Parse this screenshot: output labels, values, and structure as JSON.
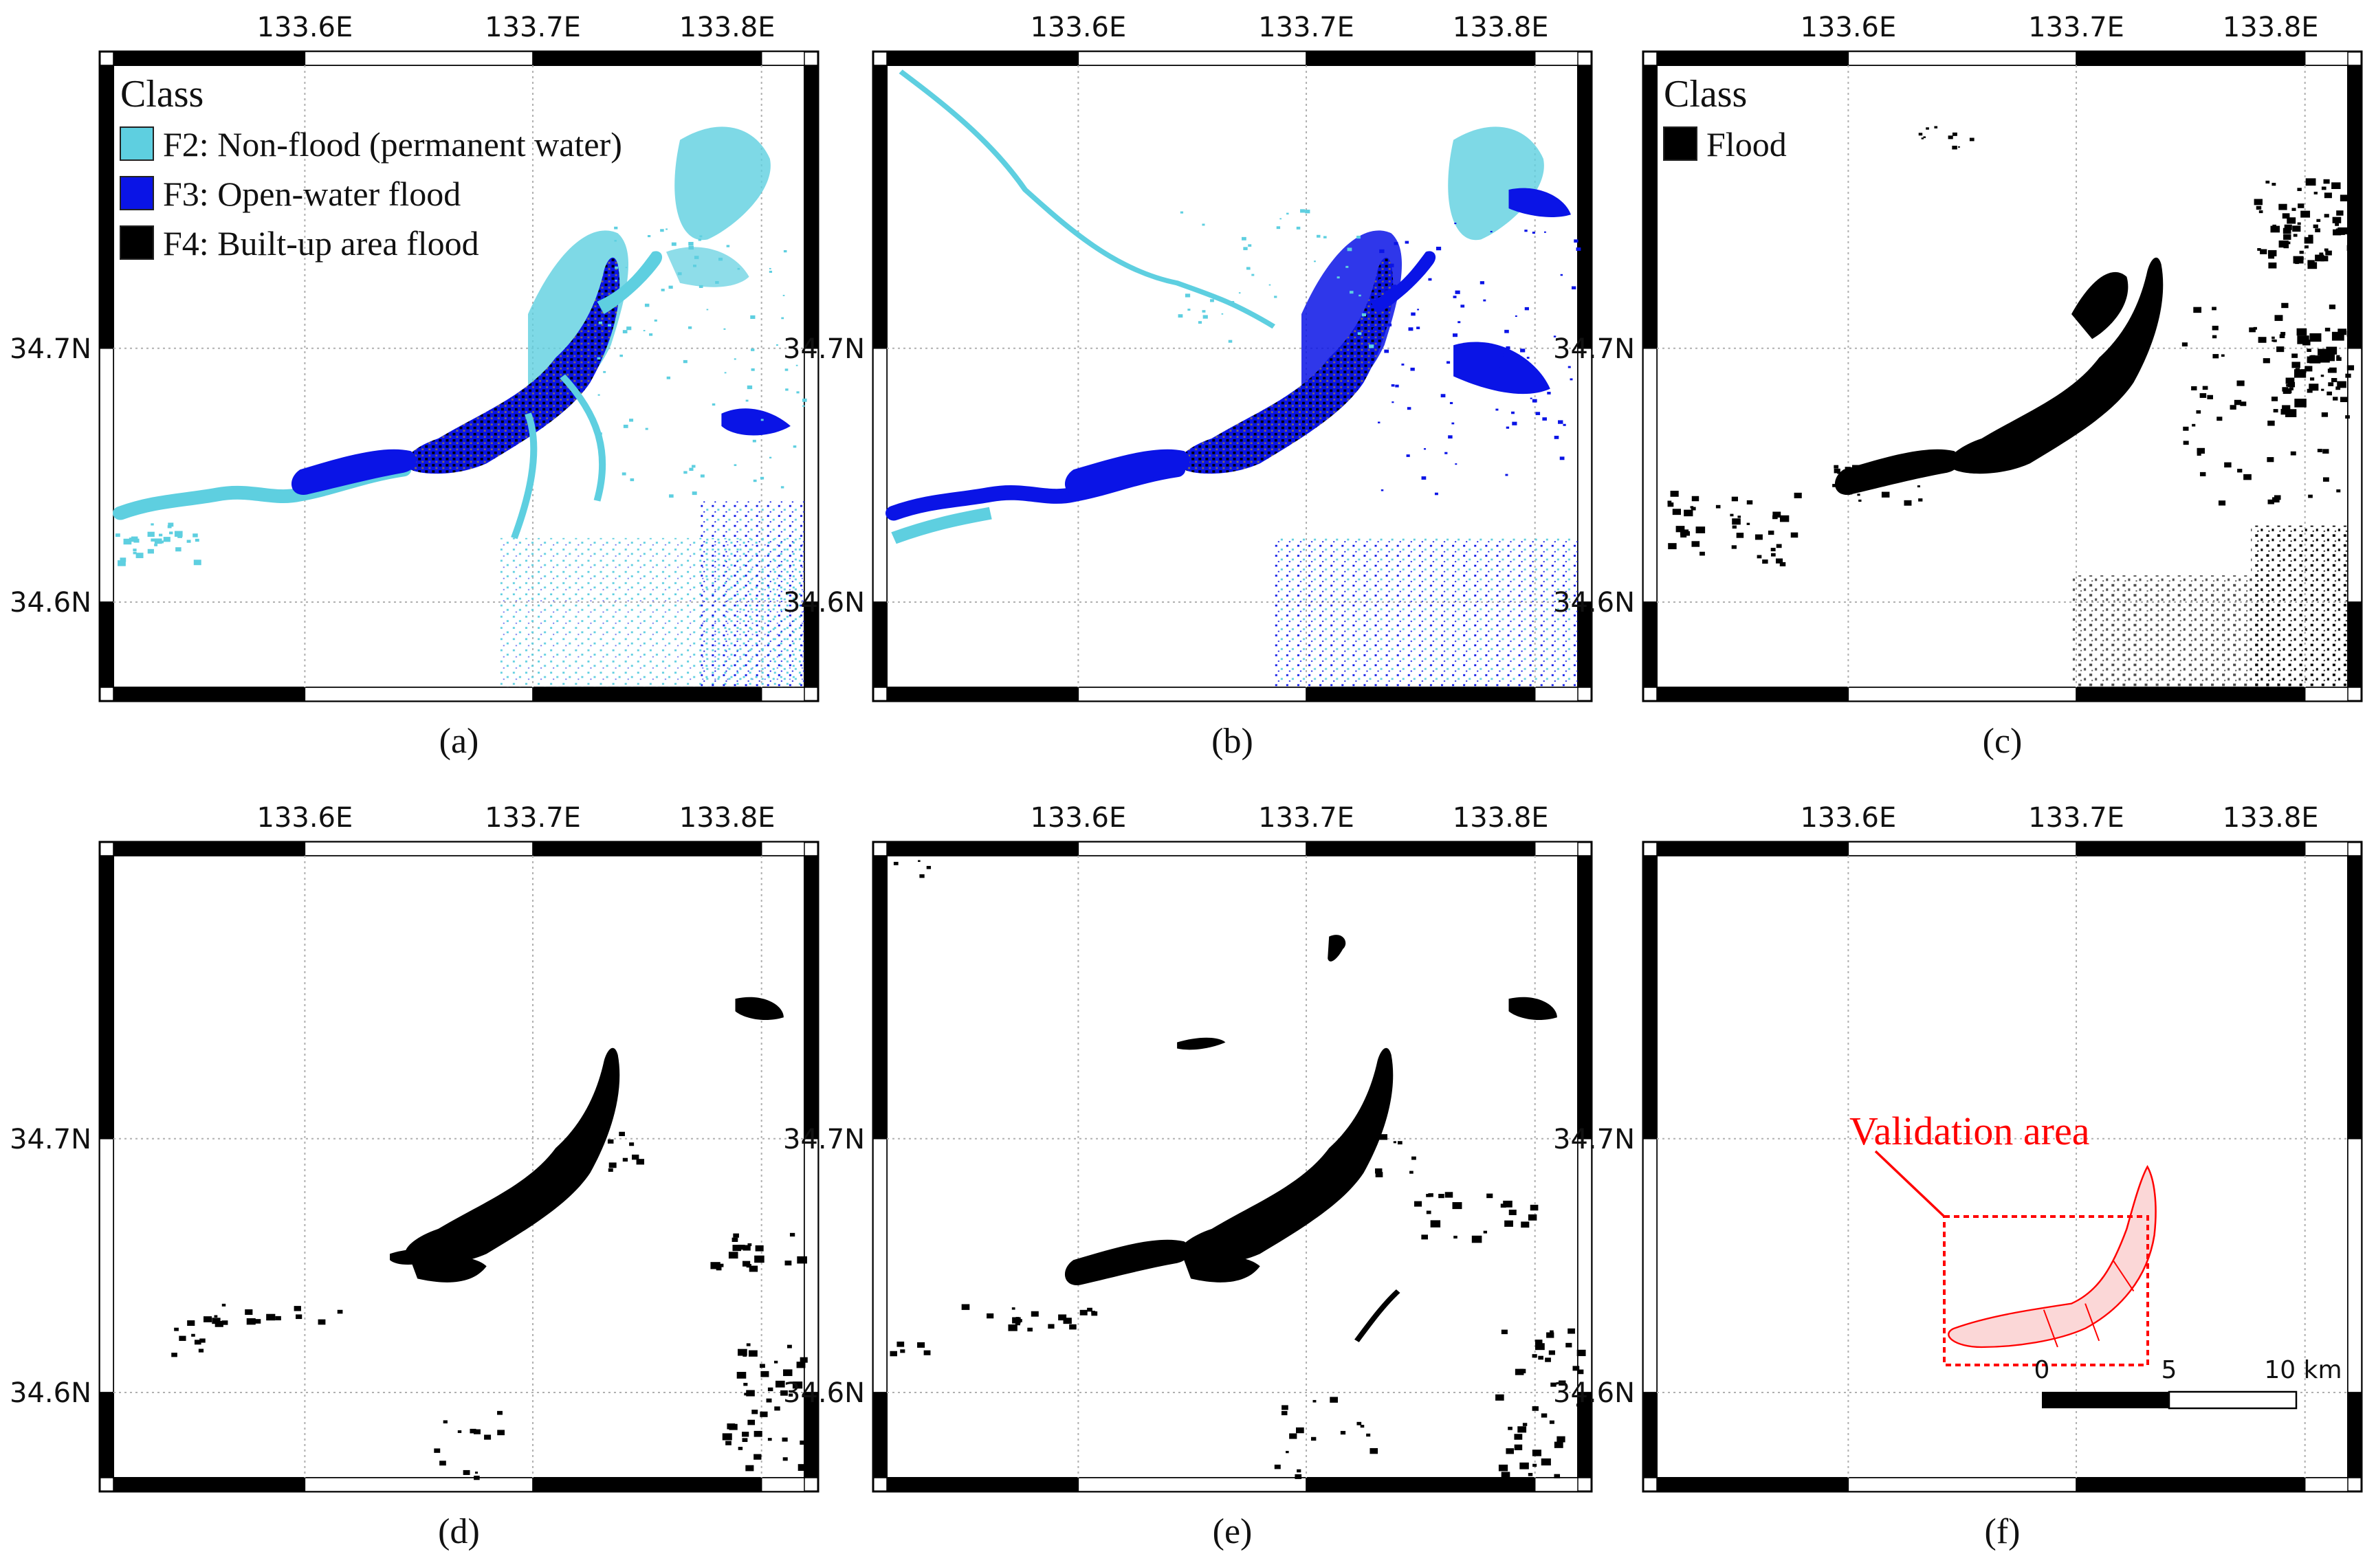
{
  "map": {
    "lon_labels": [
      "133.6E",
      "133.7E",
      "133.8E"
    ],
    "lat_labels": [
      "34.7N",
      "34.6N"
    ],
    "colors": {
      "permanent_water": "#5ecfe0",
      "open_water_flood": "#0a14e6",
      "built_up_flood": "#000000",
      "validation": "#ff0000",
      "validation_fill": "#fbd7d7",
      "grid": "#b0b0b0"
    }
  },
  "panels": [
    {
      "caption": "(a)",
      "legend": {
        "title": "Class",
        "items": [
          {
            "label": "F2: Non-flood (permanent water)",
            "color": "#5ecfe0"
          },
          {
            "label": "F3: Open-water flood",
            "color": "#0a14e6"
          },
          {
            "label": "F4: Built-up area flood",
            "color": "#000000"
          }
        ]
      }
    },
    {
      "caption": "(b)"
    },
    {
      "caption": "(c)",
      "legend": {
        "title": "Class",
        "items": [
          {
            "label": "Flood",
            "color": "#000000"
          }
        ]
      }
    },
    {
      "caption": "(d)"
    },
    {
      "caption": "(e)"
    },
    {
      "caption": "(f)",
      "annotation": "Validation area",
      "scalebar": {
        "labels": [
          "0",
          "5",
          "10 km"
        ]
      }
    }
  ]
}
